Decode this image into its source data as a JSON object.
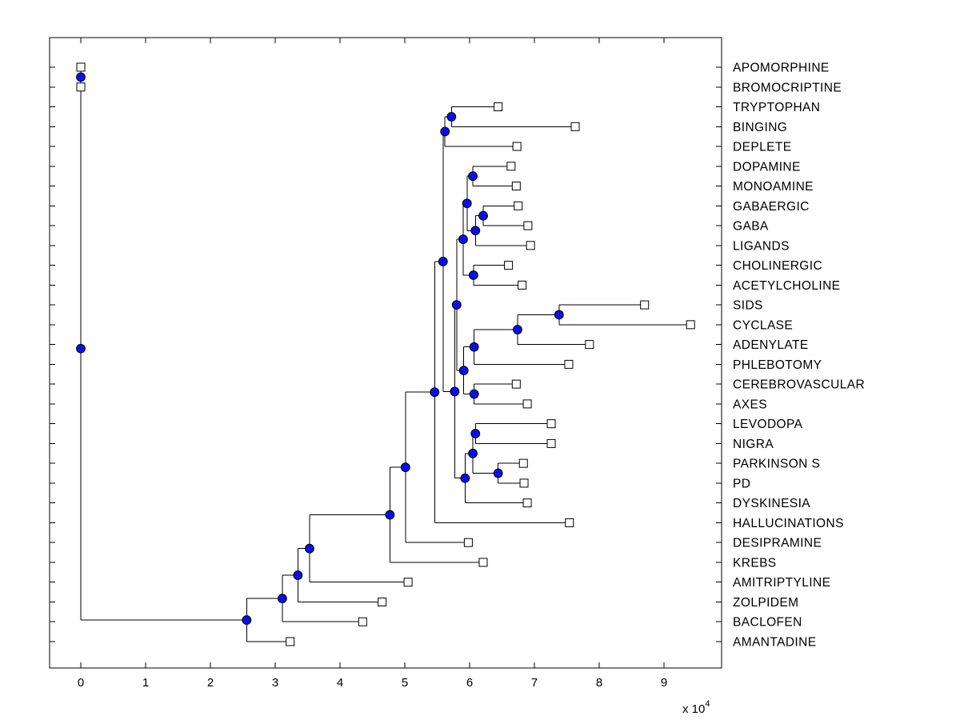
{
  "figure": {
    "background": "#ffffff",
    "line_color": "#000000",
    "internal_node_color": "#0b0df0",
    "internal_node_edge": "#000000",
    "leaf_marker_fill": "#ffffff",
    "leaf_marker_edge": "#000000",
    "exponent_label": {
      "prefix": "x 10",
      "exponent": "4"
    }
  },
  "chart_data": {
    "type": "dendrogram",
    "orientation": "left-to-right",
    "title": "",
    "xlabel": "",
    "ylabel": "",
    "grid": false,
    "legend": null,
    "x_axis": {
      "tick_values": [
        0,
        1,
        2,
        3,
        4,
        5,
        6,
        7,
        8,
        9
      ],
      "tick_labels": [
        "0",
        "1",
        "2",
        "3",
        "4",
        "5",
        "6",
        "7",
        "8",
        "9"
      ],
      "unit_multiplier": "x 10^4",
      "range": [
        0,
        9.89
      ]
    },
    "leaf_labels": [
      "APOMORPHINE",
      "BROMOCRIPTINE",
      "TRYPTOPHAN",
      "BINGING",
      "DEPLETE",
      "DOPAMINE",
      "MONOAMINE",
      "GABAERGIC",
      "GABA",
      "LIGANDS",
      "CHOLINERGIC",
      "ACETYLCHOLINE",
      "SIDS",
      "CYCLASE",
      "ADENYLATE",
      "PHLEBOTOMY",
      "CEREBROVASCULAR",
      "AXES",
      "LEVODOPA",
      "NIGRA",
      "PARKINSON S",
      "PD",
      "DYSKINESIA",
      "HALLUCINATIONS",
      "DESIPRAMINE",
      "KREBS",
      "AMITRIPTYLINE",
      "ZOLPIDEM",
      "BACLOFEN",
      "AMANTADINE"
    ],
    "tree": {
      "x": 0,
      "children": [
        {
          "x": 0,
          "children": [
            {
              "x": 0,
              "label": "APOMORPHINE"
            },
            {
              "x": 0,
              "label": "BROMOCRIPTINE"
            }
          ]
        },
        {
          "x": 2.56,
          "children": [
            {
              "x": 3.11,
              "children": [
                {
                  "x": 3.35,
                  "children": [
                    {
                      "x": 3.53,
                      "children": [
                        {
                          "x": 4.77,
                          "children": [
                            {
                              "x": 5.01,
                              "children": [
                                {
                                  "x": 5.46,
                                  "children": [
                                    {
                                      "x": 5.59,
                                      "children": [
                                        {
                                          "x": 5.62,
                                          "children": [
                                            {
                                              "x": 5.72,
                                              "children": [
                                                {
                                                  "x": 6.44,
                                                  "label": "TRYPTOPHAN"
                                                },
                                                {
                                                  "x": 7.63,
                                                  "label": "BINGING"
                                                }
                                              ]
                                            },
                                            {
                                              "x": 6.73,
                                              "label": "DEPLETE"
                                            }
                                          ]
                                        },
                                        {
                                          "x": 5.77,
                                          "children": [
                                            {
                                              "x": 5.8,
                                              "children": [
                                                {
                                                  "x": 5.9,
                                                  "children": [
                                                    {
                                                      "x": 5.96,
                                                      "children": [
                                                        {
                                                          "x": 6.05,
                                                          "children": [
                                                            {
                                                              "x": 6.64,
                                                              "label": "DOPAMINE"
                                                            },
                                                            {
                                                              "x": 6.72,
                                                              "label": "MONOAMINE"
                                                            }
                                                          ]
                                                        },
                                                        {
                                                          "x": 6.09,
                                                          "children": [
                                                            {
                                                              "x": 6.21,
                                                              "children": [
                                                                {
                                                                  "x": 6.75,
                                                                  "label": "GABAERGIC"
                                                                },
                                                                {
                                                                  "x": 6.9,
                                                                  "label": "GABA"
                                                                }
                                                              ]
                                                            },
                                                            {
                                                              "x": 6.94,
                                                              "label": "LIGANDS"
                                                            }
                                                          ]
                                                        }
                                                      ]
                                                    },
                                                    {
                                                      "x": 6.06,
                                                      "children": [
                                                        {
                                                          "x": 6.6,
                                                          "label": "CHOLINERGIC"
                                                        },
                                                        {
                                                          "x": 6.81,
                                                          "label": "ACETYLCHOLINE"
                                                        }
                                                      ]
                                                    }
                                                  ]
                                                },
                                                {
                                                  "x": 5.91,
                                                  "children": [
                                                    {
                                                      "x": 6.07,
                                                      "children": [
                                                        {
                                                          "x": 6.74,
                                                          "children": [
                                                            {
                                                              "x": 7.38,
                                                              "children": [
                                                                {
                                                                  "x": 8.7,
                                                                  "label": "SIDS"
                                                                },
                                                                {
                                                                  "x": 9.41,
                                                                  "label": "CYCLASE"
                                                                }
                                                              ]
                                                            },
                                                            {
                                                              "x": 7.85,
                                                              "label": "ADENYLATE"
                                                            }
                                                          ]
                                                        },
                                                        {
                                                          "x": 7.53,
                                                          "label": "PHLEBOTOMY"
                                                        }
                                                      ]
                                                    },
                                                    {
                                                      "x": 6.07,
                                                      "children": [
                                                        {
                                                          "x": 6.72,
                                                          "label": "CEREBROVASCULAR"
                                                        },
                                                        {
                                                          "x": 6.89,
                                                          "label": "AXES"
                                                        }
                                                      ]
                                                    }
                                                  ]
                                                }
                                              ]
                                            },
                                            {
                                              "x": 5.93,
                                              "children": [
                                                {
                                                  "x": 6.05,
                                                  "children": [
                                                    {
                                                      "x": 6.09,
                                                      "children": [
                                                        {
                                                          "x": 7.26,
                                                          "label": "LEVODOPA"
                                                        },
                                                        {
                                                          "x": 7.26,
                                                          "label": "NIGRA"
                                                        }
                                                      ]
                                                    },
                                                    {
                                                      "x": 6.44,
                                                      "children": [
                                                        {
                                                          "x": 6.83,
                                                          "label": "PARKINSON S"
                                                        },
                                                        {
                                                          "x": 6.84,
                                                          "label": "PD"
                                                        }
                                                      ]
                                                    }
                                                  ]
                                                },
                                                {
                                                  "x": 6.89,
                                                  "label": "DYSKINESIA"
                                                }
                                              ]
                                            }
                                          ]
                                        }
                                      ]
                                    },
                                    {
                                      "x": 7.54,
                                      "label": "HALLUCINATIONS"
                                    }
                                  ]
                                },
                                {
                                  "x": 5.98,
                                  "label": "DESIPRAMINE"
                                }
                              ]
                            },
                            {
                              "x": 6.21,
                              "label": "KREBS"
                            }
                          ]
                        },
                        {
                          "x": 5.05,
                          "label": "AMITRIPTYLINE"
                        }
                      ]
                    },
                    {
                      "x": 4.65,
                      "label": "ZOLPIDEM"
                    }
                  ]
                },
                {
                  "x": 4.35,
                  "label": "BACLOFEN"
                }
              ]
            },
            {
              "x": 3.23,
              "label": "AMANTADINE"
            }
          ]
        }
      ]
    }
  }
}
